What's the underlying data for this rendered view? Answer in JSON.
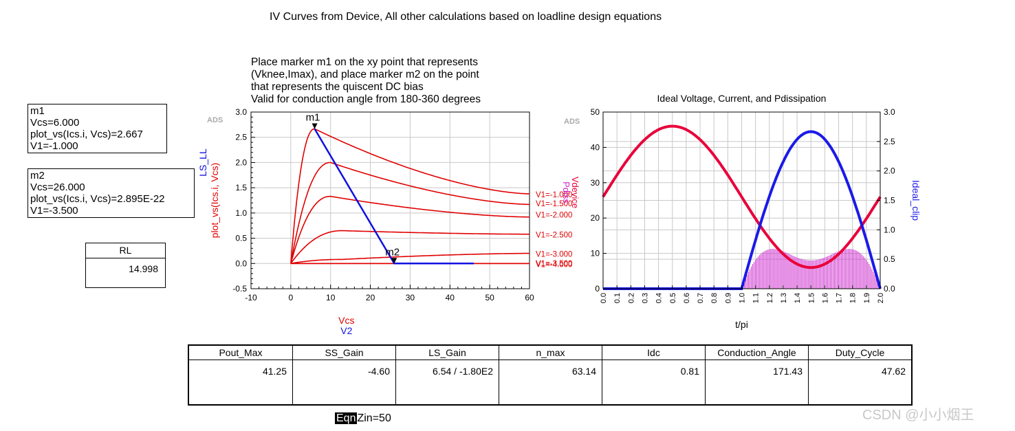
{
  "header": {
    "title": "IV Curves from Device, All other calculations based on loadline design equations"
  },
  "markers": [
    {
      "name": "m1",
      "lines": [
        "m1",
        "Vcs=6.000",
        "plot_vs(Ics.i, Vcs)=2.667",
        "V1=-1.000"
      ]
    },
    {
      "name": "m2",
      "lines": [
        "m2",
        "Vcs=26.000",
        "plot_vs(Ics.i, Vcs)=2.895E-22",
        "V1=-3.500"
      ]
    }
  ],
  "rl_box": {
    "label": "RL",
    "value": "14.998"
  },
  "instructions": [
    "Place marker m1 on the xy point that represents",
    "(Vknee,Imax), and place marker m2 on the point",
    "that represents the quiscent DC bias",
    "Valid for conduction angle from 180-360 degrees"
  ],
  "summary": {
    "headers": [
      "Pout_Max",
      "SS_Gain",
      "LS_Gain",
      "n_max",
      "Idc",
      "Conduction_Angle",
      "Duty_Cycle"
    ],
    "values": [
      "41.25",
      "-4.60",
      "6.54 / -1.80E2",
      "63.14",
      "0.81",
      "171.43",
      "47.62"
    ]
  },
  "eqn": {
    "tag": "Eqn",
    "text": "Zin=50"
  },
  "watermark": "CSDN @小小烟王",
  "colors": {
    "iv_curve": "#e00000",
    "loadline": "#1010e0",
    "vdevice": "#e8003a",
    "ideal_clip": "#1a1ae8",
    "pdiss": "#cc22cc",
    "grid": "#c8c8c8"
  },
  "chart_data": [
    {
      "type": "line",
      "title": "",
      "ads_tag": "ADS",
      "xlabel": "Vcs",
      "xlabel2": "V2",
      "ylabel": "plot_vs(Ics.i, Vcs)",
      "ylabel2": "LS_LL",
      "xlim": [
        -10,
        60
      ],
      "ylim": [
        -0.5,
        3.0
      ],
      "xticks": [
        "-10",
        "0",
        "10",
        "20",
        "30",
        "40",
        "50",
        "60"
      ],
      "yticks": [
        "-0.5",
        "0.0",
        "0.5",
        "1.0",
        "1.5",
        "2.0",
        "2.5",
        "3.0"
      ],
      "grid": true,
      "series": [
        {
          "name": "V1=-1.000",
          "peak": [
            6,
            2.667
          ],
          "end": 1.38
        },
        {
          "name": "V1=-1.500",
          "peak": [
            10,
            2.0
          ],
          "end": 1.17
        },
        {
          "name": "V1=-2.000",
          "peak": [
            10,
            1.33
          ],
          "end": 0.92
        },
        {
          "name": "V1=-2.500",
          "peak": [
            13,
            0.65
          ],
          "end": 0.58
        },
        {
          "name": "V1=-3.000",
          "peak": [
            13,
            0.08
          ],
          "end": 0.2
        },
        {
          "name": "V1=-3.500",
          "peak": [
            13,
            0.0
          ],
          "end": 0.0
        },
        {
          "name": "V1=-4.000",
          "peak": [
            13,
            0.0
          ],
          "end": 0.0
        }
      ],
      "right_labels": [
        "V1=-1.000",
        "V1=-1.500",
        "V1=-2.000",
        "V1=-2.500",
        "V1=-3.000",
        "V1=-3.500",
        "V1=-4.000"
      ],
      "loadline": {
        "x": [
          6,
          26,
          46
        ],
        "y": [
          2.667,
          0.0,
          0.0
        ]
      },
      "marker_points": [
        {
          "label": "m1",
          "x": 6,
          "y": 2.667
        },
        {
          "label": "m2",
          "x": 26,
          "y": 0.0
        }
      ]
    },
    {
      "type": "line",
      "title": "Ideal Voltage, Current, and Pdissipation",
      "ads_tag": "ADS",
      "xlabel": "t/pi",
      "ylabel_left": "Vdevice",
      "ylabel_right": "Ideal_clip",
      "ylabel_pdiss": "Pdiss",
      "xlim": [
        0.0,
        2.0
      ],
      "ylim_left": [
        0,
        50
      ],
      "ylim_right": [
        0.0,
        3.0
      ],
      "xticks": [
        "0.0",
        "0.1",
        "0.2",
        "0.3",
        "0.4",
        "0.5",
        "0.6",
        "0.7",
        "0.8",
        "0.9",
        "1.0",
        "1.1",
        "1.2",
        "1.3",
        "1.4",
        "1.5",
        "1.6",
        "1.7",
        "1.8",
        "1.9",
        "2.0"
      ],
      "yticks_left": [
        "0",
        "10",
        "20",
        "30",
        "40",
        "50"
      ],
      "yticks_right": [
        "0.0",
        "0.5",
        "1.0",
        "1.5",
        "2.0",
        "2.5",
        "3.0"
      ],
      "grid": true,
      "voltage": {
        "dc": 26,
        "amp": 20
      },
      "current": {
        "peak": 2.667,
        "start": 1.0,
        "end": 2.0
      },
      "pdiss": {
        "note": "bars between t/pi 1.0 and 2.0"
      }
    }
  ]
}
